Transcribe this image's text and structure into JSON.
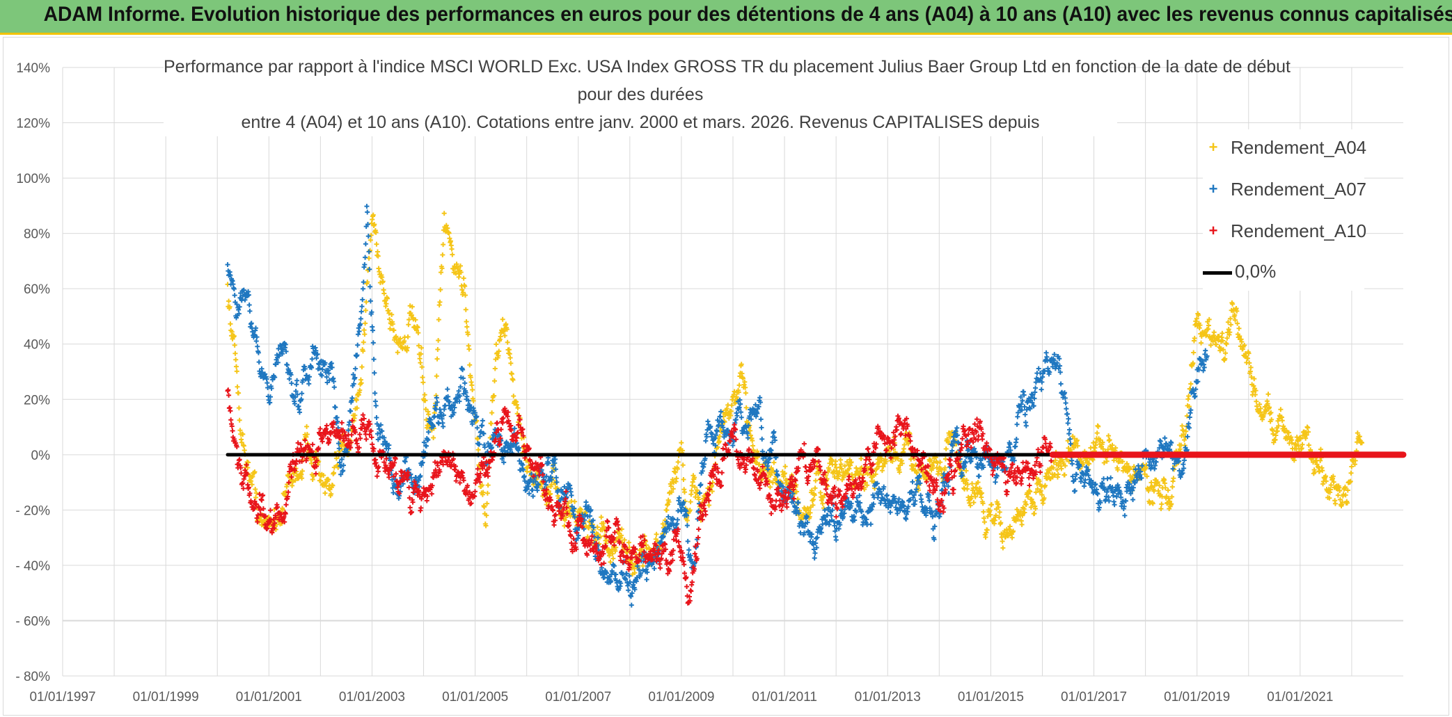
{
  "banner": {
    "title": "ADAM Informe. Evolution historique des performances en euros pour des détentions de 4 ans (A04) à 10 ans (A10) avec les revenus connus capitalisés",
    "background": "#7dc67a",
    "accent": "#f2c200"
  },
  "chart_data": {
    "type": "scatter",
    "title_lines": [
      "Performance par rapport à l'indice MSCI WORLD Exc. USA Index GROSS TR  du placement Julius Baer Group Ltd en fonction de la date de début",
      "pour des durées",
      "entre 4 (A04) et 10 ans (A10). Cotations entre janv. 2000 et mars. 2026. Revenus CAPITALISES depuis"
    ],
    "x_axis": {
      "type": "date",
      "range": [
        "1997-01-01",
        "2023-01-01"
      ],
      "tick_labels": [
        "01/01/1997",
        "01/01/1999",
        "01/01/2001",
        "01/01/2003",
        "01/01/2005",
        "01/01/2007",
        "01/01/2009",
        "01/01/2011",
        "01/01/2013",
        "01/01/2015",
        "01/01/2017",
        "01/01/2019",
        "01/01/2021"
      ],
      "tick_years": [
        1997,
        1999,
        2001,
        2003,
        2005,
        2007,
        2009,
        2011,
        2013,
        2015,
        2017,
        2019,
        2021
      ],
      "minor_gridlines_years": [
        1998,
        2000,
        2002,
        2004,
        2006,
        2008,
        2010,
        2012,
        2014,
        2016,
        2018,
        2020,
        2022
      ]
    },
    "y_axis": {
      "range": [
        -80,
        140
      ],
      "unit": "%",
      "ticks": [
        140,
        120,
        100,
        80,
        60,
        40,
        20,
        0,
        -20,
        -40,
        -60,
        -80
      ],
      "tick_labels": [
        "140%",
        "120%",
        "100%",
        "80%",
        "60%",
        "40%",
        "20%",
        "0%",
        "- 20%",
        "- 40%",
        "- 60%",
        "- 80%"
      ]
    },
    "marker": "+",
    "series": [
      {
        "name": "Rendement_A04",
        "color": "#f5c518",
        "date_range": [
          "2000-03-01",
          "2022-03-01"
        ],
        "trend": [
          [
            2000.2,
            60
          ],
          [
            2000.5,
            5
          ],
          [
            2000.9,
            -28
          ],
          [
            2001.3,
            -15
          ],
          [
            2001.8,
            5
          ],
          [
            2002.2,
            -18
          ],
          [
            2002.5,
            5
          ],
          [
            2002.8,
            30
          ],
          [
            2003.0,
            85
          ],
          [
            2003.3,
            55
          ],
          [
            2003.5,
            40
          ],
          [
            2003.8,
            48
          ],
          [
            2004.0,
            20
          ],
          [
            2004.2,
            5
          ],
          [
            2004.4,
            80
          ],
          [
            2004.6,
            70
          ],
          [
            2004.8,
            60
          ],
          [
            2005.0,
            15
          ],
          [
            2005.2,
            -25
          ],
          [
            2005.4,
            35
          ],
          [
            2005.6,
            45
          ],
          [
            2005.9,
            5
          ],
          [
            2006.3,
            -15
          ],
          [
            2006.8,
            -20
          ],
          [
            2007.3,
            -25
          ],
          [
            2007.8,
            -35
          ],
          [
            2008.2,
            -38
          ],
          [
            2008.6,
            -32
          ],
          [
            2009.0,
            5
          ],
          [
            2009.1,
            -20
          ],
          [
            2009.5,
            -15
          ],
          [
            2009.9,
            15
          ],
          [
            2010.2,
            20
          ],
          [
            2010.6,
            -5
          ],
          [
            2011.0,
            -15
          ],
          [
            2011.4,
            -20
          ],
          [
            2011.8,
            -10
          ],
          [
            2012.2,
            -5
          ],
          [
            2012.6,
            -10
          ],
          [
            2013.0,
            -5
          ],
          [
            2013.4,
            0
          ],
          [
            2013.8,
            -5
          ],
          [
            2014.2,
            5
          ],
          [
            2014.6,
            -10
          ],
          [
            2015.0,
            -25
          ],
          [
            2015.4,
            -28
          ],
          [
            2015.8,
            -15
          ],
          [
            2016.2,
            -5
          ],
          [
            2016.6,
            0
          ],
          [
            2017.0,
            3
          ],
          [
            2017.5,
            -3
          ],
          [
            2018.0,
            -8
          ],
          [
            2018.5,
            -15
          ],
          [
            2018.8,
            10
          ],
          [
            2019.0,
            50
          ],
          [
            2019.4,
            40
          ],
          [
            2019.8,
            45
          ],
          [
            2020.2,
            20
          ],
          [
            2020.6,
            10
          ],
          [
            2021.0,
            5
          ],
          [
            2021.5,
            -5
          ],
          [
            2021.9,
            -15
          ],
          [
            2022.2,
            5
          ]
        ]
      },
      {
        "name": "Rendement_A07",
        "color": "#1f77c0",
        "date_range": [
          "2000-03-01",
          "2019-03-01"
        ],
        "trend": [
          [
            2000.2,
            70
          ],
          [
            2000.4,
            55
          ],
          [
            2000.6,
            60
          ],
          [
            2000.8,
            35
          ],
          [
            2001.0,
            20
          ],
          [
            2001.3,
            40
          ],
          [
            2001.6,
            15
          ],
          [
            2001.9,
            40
          ],
          [
            2002.2,
            30
          ],
          [
            2002.4,
            -10
          ],
          [
            2002.6,
            20
          ],
          [
            2002.8,
            60
          ],
          [
            2002.9,
            95
          ],
          [
            2003.1,
            5
          ],
          [
            2003.5,
            -10
          ],
          [
            2003.9,
            -5
          ],
          [
            2004.3,
            15
          ],
          [
            2004.8,
            20
          ],
          [
            2005.2,
            0
          ],
          [
            2005.6,
            5
          ],
          [
            2006.0,
            -10
          ],
          [
            2006.4,
            -5
          ],
          [
            2006.8,
            -15
          ],
          [
            2007.2,
            -25
          ],
          [
            2007.6,
            -40
          ],
          [
            2008.0,
            -47
          ],
          [
            2008.4,
            -42
          ],
          [
            2008.8,
            -25
          ],
          [
            2009.0,
            -20
          ],
          [
            2009.2,
            -40
          ],
          [
            2009.5,
            10
          ],
          [
            2009.9,
            5
          ],
          [
            2010.3,
            15
          ],
          [
            2010.7,
            -5
          ],
          [
            2011.1,
            -15
          ],
          [
            2011.5,
            -30
          ],
          [
            2011.9,
            -25
          ],
          [
            2012.3,
            -20
          ],
          [
            2012.7,
            -15
          ],
          [
            2013.1,
            -20
          ],
          [
            2013.5,
            -15
          ],
          [
            2013.9,
            -20
          ],
          [
            2014.3,
            0
          ],
          [
            2014.7,
            5
          ],
          [
            2015.1,
            -10
          ],
          [
            2015.5,
            15
          ],
          [
            2015.9,
            25
          ],
          [
            2016.3,
            35
          ],
          [
            2016.6,
            -5
          ],
          [
            2017.0,
            -10
          ],
          [
            2017.5,
            -12
          ],
          [
            2017.9,
            -5
          ],
          [
            2018.3,
            0
          ],
          [
            2018.7,
            -10
          ],
          [
            2019.0,
            30
          ],
          [
            2019.2,
            35
          ]
        ]
      },
      {
        "name": "Rendement_A10",
        "color": "#e8141b",
        "date_range": [
          "2000-03-01",
          "2016-03-01"
        ],
        "trend": [
          [
            2000.2,
            25
          ],
          [
            2000.4,
            -5
          ],
          [
            2000.8,
            -20
          ],
          [
            2001.2,
            -20
          ],
          [
            2001.6,
            -5
          ],
          [
            2002.0,
            5
          ],
          [
            2002.4,
            5
          ],
          [
            2002.8,
            10
          ],
          [
            2003.2,
            0
          ],
          [
            2003.6,
            -10
          ],
          [
            2004.0,
            -15
          ],
          [
            2004.4,
            0
          ],
          [
            2004.8,
            -10
          ],
          [
            2005.2,
            -5
          ],
          [
            2005.6,
            15
          ],
          [
            2006.0,
            0
          ],
          [
            2006.4,
            -15
          ],
          [
            2006.8,
            -25
          ],
          [
            2007.2,
            -30
          ],
          [
            2007.6,
            -35
          ],
          [
            2008.0,
            -40
          ],
          [
            2008.4,
            -38
          ],
          [
            2008.8,
            -35
          ],
          [
            2009.2,
            -45
          ],
          [
            2009.6,
            -10
          ],
          [
            2010.0,
            5
          ],
          [
            2010.4,
            -5
          ],
          [
            2010.8,
            -15
          ],
          [
            2011.2,
            -10
          ],
          [
            2011.6,
            0
          ],
          [
            2012.0,
            -15
          ],
          [
            2012.4,
            -10
          ],
          [
            2012.8,
            5
          ],
          [
            2013.2,
            10
          ],
          [
            2013.6,
            -5
          ],
          [
            2014.0,
            -15
          ],
          [
            2014.4,
            0
          ],
          [
            2014.8,
            10
          ],
          [
            2015.2,
            0
          ],
          [
            2015.6,
            -10
          ],
          [
            2016.0,
            5
          ],
          [
            2016.2,
            0
          ]
        ]
      }
    ],
    "reference_lines": [
      {
        "name": "0,0%",
        "value": 0,
        "color": "#000000",
        "from_year": 2000.2,
        "to_year": 2016.2
      },
      {
        "name": "red-zero",
        "value": 0,
        "color": "#e8141b",
        "from_year": 2016.2,
        "to_year": 2023.0
      }
    ],
    "legend": {
      "position": "right-top",
      "entries": [
        "Rendement_A04",
        "Rendement_A07",
        "Rendement_A10",
        "0,0%"
      ]
    }
  }
}
